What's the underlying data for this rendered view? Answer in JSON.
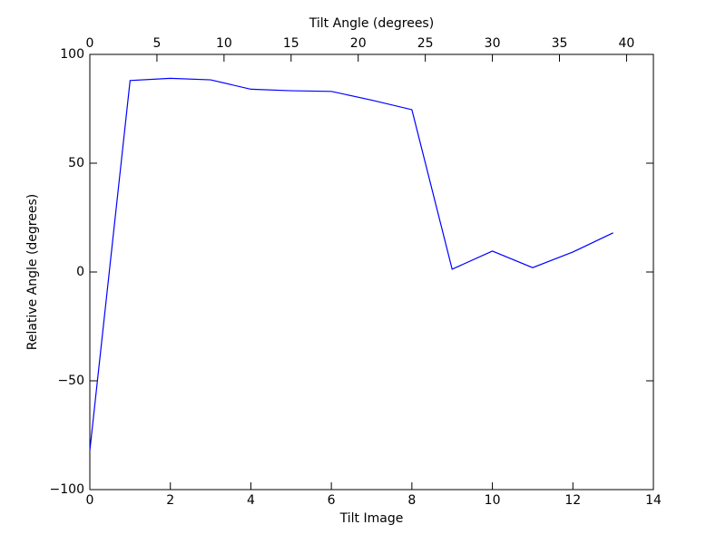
{
  "chart_data": {
    "type": "line",
    "xlabel": "Tilt Image",
    "ylabel": "Relative Angle (degrees)",
    "x2label": "Tilt Angle (degrees)",
    "x": [
      0,
      1,
      2,
      3,
      4,
      5,
      6,
      7,
      8,
      9,
      10,
      11,
      12,
      13
    ],
    "series": [
      {
        "color": "#0000ff",
        "values": [
          -82,
          88,
          89,
          88.3,
          84,
          83.3,
          83,
          79,
          74.6,
          1.3,
          9.6,
          2,
          9.2,
          18
        ]
      }
    ],
    "xlim": [
      0,
      14
    ],
    "xticks": [
      0,
      2,
      4,
      6,
      8,
      10,
      12,
      14
    ],
    "x2lim": [
      0,
      42
    ],
    "x2ticks": [
      0,
      5,
      10,
      15,
      20,
      25,
      30,
      35,
      40
    ],
    "ylim": [
      -100,
      100
    ],
    "yticks": [
      {
        "value": -100,
        "label": "−100"
      },
      {
        "value": -50,
        "label": "−50"
      },
      0,
      50,
      100
    ],
    "grid": false
  }
}
